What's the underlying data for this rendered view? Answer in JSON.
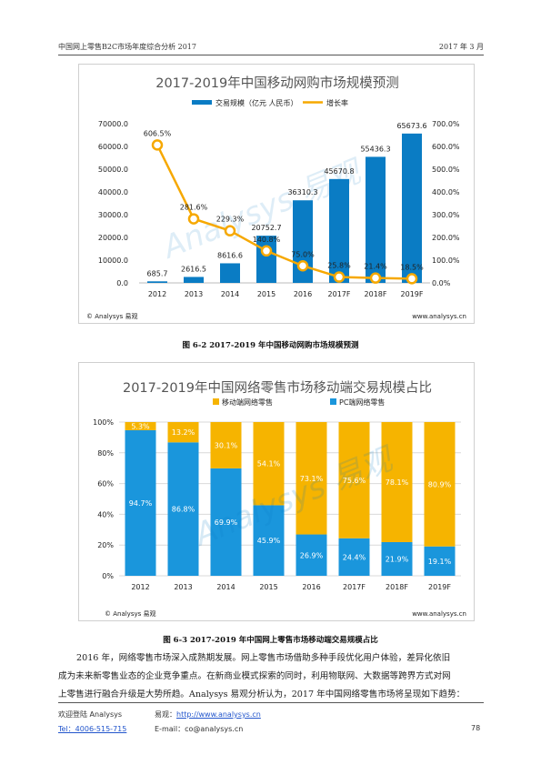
{
  "header": {
    "left": "中国网上零售B2C市场年度综合分析 2017",
    "right": "2017 年 3 月"
  },
  "chart1": {
    "caption": "图 6-2 2017-2019 年中国移动网购市场规模预测",
    "watermark": "Analysys 易观",
    "source": "© Analysys 易观",
    "url": "www.analysys.cn",
    "bar_color": "#0a7cc4",
    "line_color": "#f6a800"
  },
  "chart2": {
    "caption": "图 6-3 2017-2019 年中国网上零售市场移动端交易规模占比",
    "watermark": "Analysys 易观",
    "source": "© Analysys 易观",
    "url": "www.analysys.cn",
    "mobile_color": "#f6b400",
    "pc_color": "#1a96dc"
  },
  "chart_data": [
    {
      "type": "bar",
      "title": "2017-2019年中国移动网购市场规模预测",
      "categories": [
        "2012",
        "2013",
        "2014",
        "2015",
        "2016",
        "2017F",
        "2018F",
        "2019F"
      ],
      "series": [
        {
          "name": "交易规模（亿元 人民币）",
          "type": "bar",
          "axis": "left",
          "values": [
            685.7,
            2616.5,
            8616.6,
            20752.7,
            36310.3,
            45670.8,
            55436.3,
            65673.6
          ],
          "labels": [
            "685.7",
            "2616.5",
            "8616.6",
            "20752.7",
            "36310.3",
            "45670.8",
            "55436.3",
            "65673.6"
          ]
        },
        {
          "name": "增长率",
          "type": "line",
          "axis": "right",
          "values": [
            606.5,
            281.6,
            229.3,
            140.8,
            75.0,
            25.8,
            21.4,
            18.5
          ],
          "labels": [
            "606.5%",
            "281.6%",
            "229.3%",
            "140.8%",
            "75.0%",
            "25.8%",
            "21.4%",
            "18.5%"
          ]
        }
      ],
      "ylim_left": [
        0,
        70000
      ],
      "ylim_right": [
        0,
        700
      ],
      "left_ticks": [
        "0.0",
        "10000.0",
        "20000.0",
        "30000.0",
        "40000.0",
        "50000.0",
        "60000.0",
        "70000.0"
      ],
      "right_ticks": [
        "0.0%",
        "100.0%",
        "200.0%",
        "300.0%",
        "400.0%",
        "500.0%",
        "600.0%",
        "700.0%"
      ],
      "legend": "top"
    },
    {
      "type": "bar",
      "stacked": true,
      "title": "2017-2019年中国网络零售市场移动端交易规模占比",
      "categories": [
        "2012",
        "2013",
        "2014",
        "2015",
        "2016",
        "2017F",
        "2018F",
        "2019F"
      ],
      "series": [
        {
          "name": "移动端网络零售",
          "values": [
            5.3,
            13.2,
            30.1,
            54.1,
            73.1,
            75.6,
            78.1,
            80.9
          ],
          "labels": [
            "5.3%",
            "13.2%",
            "30.1%",
            "54.1%",
            "73.1%",
            "75.6%",
            "78.1%",
            "80.9%"
          ]
        },
        {
          "name": "PC端网络零售",
          "values": [
            94.7,
            86.8,
            69.9,
            45.9,
            26.9,
            24.4,
            21.9,
            19.1
          ],
          "labels": [
            "94.7%",
            "86.8%",
            "69.9%",
            "45.9%",
            "26.9%",
            "24.4%",
            "21.9%",
            "19.1%"
          ]
        }
      ],
      "ylim": [
        0,
        100
      ],
      "y_ticks": [
        "0%",
        "20%",
        "40%",
        "60%",
        "80%",
        "100%"
      ],
      "legend": "top"
    }
  ],
  "paragraph": {
    "lines": [
      "2016 年，网络零售市场深入成熟期发展。网上零售市场借助多种手段优化用户体验，差异化依旧",
      "成为未来新零售业态的企业竞争重点。在新商业模式探索的同时，利用物联网、大数据等跨界方式对网",
      "上零售进行融合升级是大势所趋。Analysys 易观分析认为，2017 年中国网络零售市场将呈现如下趋势："
    ]
  },
  "footer": {
    "welcome": "欢迎登陆 Analysys",
    "site_label": "易观：",
    "site_url": "http://www.analysys.cn",
    "tel": "Tel：4006-515-715",
    "email": "E-mail：co@analysys.cn",
    "page": "78"
  }
}
